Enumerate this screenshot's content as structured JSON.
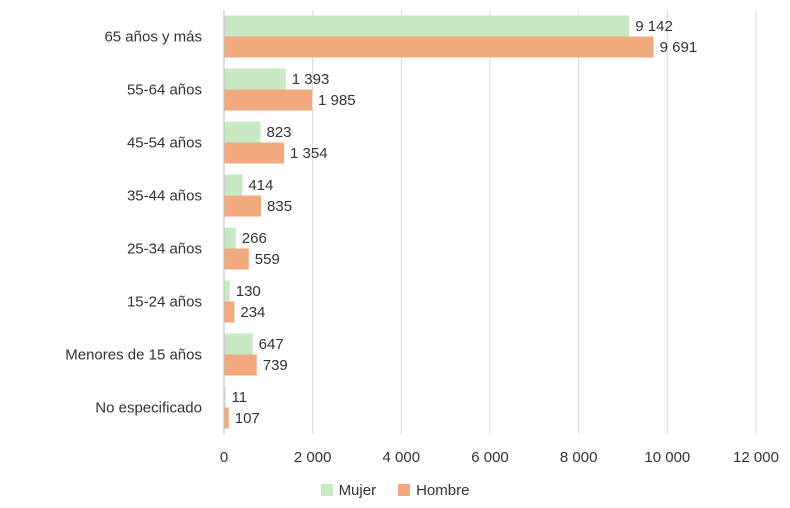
{
  "chart_data": {
    "type": "bar",
    "orientation": "horizontal",
    "categories": [
      "65 años y más",
      "55-64 años",
      "45-54 años",
      "35-44 años",
      "25-34 años",
      "15-24 años",
      "Menores de 15 años",
      "No especificado"
    ],
    "series": [
      {
        "name": "Mujer",
        "color": "#c9e8c4",
        "values": [
          9142,
          1393,
          823,
          414,
          266,
          130,
          647,
          11
        ],
        "labels": [
          "9 142",
          "1 393",
          "823",
          "414",
          "266",
          "130",
          "647",
          "11"
        ]
      },
      {
        "name": "Hombre",
        "color": "#f3a97e",
        "values": [
          9691,
          1985,
          1354,
          835,
          559,
          234,
          739,
          107
        ],
        "labels": [
          "9 691",
          "1 985",
          "1 354",
          "835",
          "559",
          "234",
          "739",
          "107"
        ]
      }
    ],
    "xlim": [
      0,
      12000
    ],
    "xticks": [
      0,
      2000,
      4000,
      6000,
      8000,
      10000,
      12000
    ],
    "xtick_labels": [
      "0",
      "2 000",
      "4 000",
      "6 000",
      "8 000",
      "10 000",
      "12 000"
    ],
    "gridlines": true,
    "legend_position": "bottom",
    "title": "",
    "xlabel": "",
    "ylabel": ""
  }
}
